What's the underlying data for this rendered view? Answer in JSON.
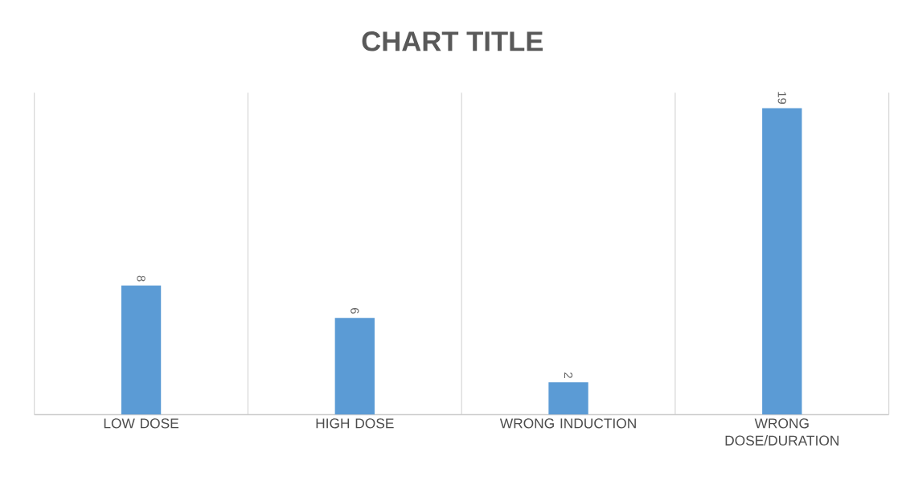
{
  "chart_data": {
    "type": "bar",
    "title": "CHART TITLE",
    "categories": [
      "LOW DOSE",
      "HIGH DOSE",
      "WRONG INDUCTION",
      "WRONG DOSE/DURATION"
    ],
    "values": [
      8,
      6,
      2,
      19
    ],
    "color": "#5b9bd5",
    "data_labels": true,
    "grid": "x"
  }
}
